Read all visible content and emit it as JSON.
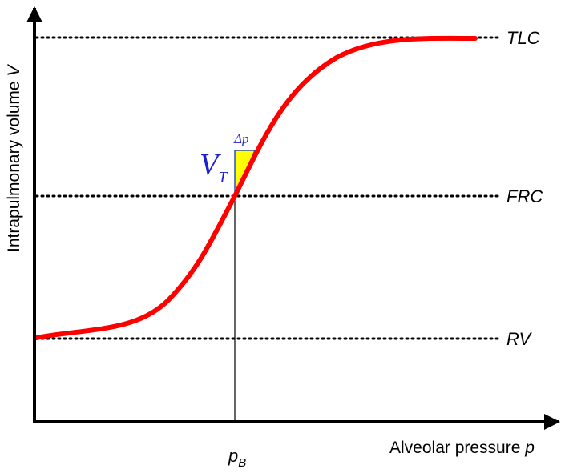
{
  "axes": {
    "y_label": "Intrapulmonary volume",
    "y_var": "V",
    "x_label": "Alveolar pressure",
    "x_var": "p"
  },
  "levels": {
    "tlc": "TLC",
    "frc": "FRC",
    "rv": "RV"
  },
  "markers": {
    "pb_main": "p",
    "pb_sub": "B",
    "delta_p": "Δp",
    "vt_main": "V",
    "vt_sub": "T"
  },
  "colors": {
    "curve": "#ff0000",
    "triangle_fill": "#ffff00",
    "triangle_stroke": "#2a52be",
    "annotation_text": "#1f1fd0",
    "axes": "#000000"
  }
}
